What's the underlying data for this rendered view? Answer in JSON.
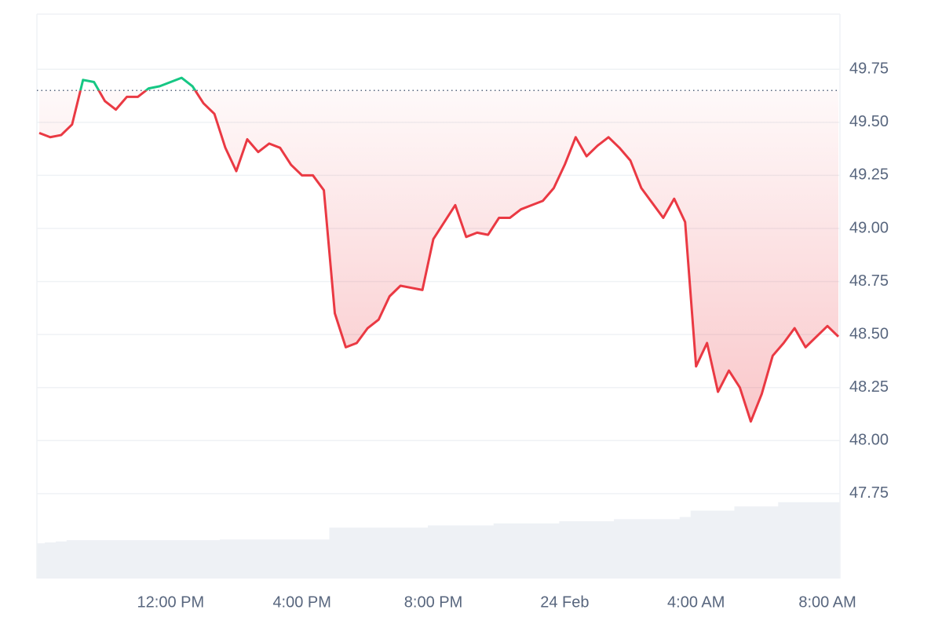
{
  "chart_data": {
    "type": "line",
    "categories": [
      null,
      null,
      null,
      null,
      null,
      null,
      null,
      null,
      null,
      null,
      null,
      null,
      "12:00 PM",
      null,
      null,
      null,
      null,
      null,
      null,
      null,
      null,
      null,
      null,
      null,
      "4:00 PM",
      null,
      null,
      null,
      null,
      null,
      null,
      null,
      null,
      null,
      null,
      null,
      "8:00 PM",
      null,
      null,
      null,
      null,
      null,
      null,
      null,
      null,
      null,
      null,
      null,
      "24 Feb",
      null,
      null,
      null,
      null,
      null,
      null,
      null,
      null,
      null,
      null,
      null,
      "4:00 AM",
      null,
      null,
      null,
      null,
      null,
      null,
      null,
      null,
      null,
      null,
      null,
      "8:00 AM",
      null
    ],
    "series": [
      {
        "values": [
          49.45,
          49.43,
          49.44,
          49.49,
          49.7,
          49.69,
          49.6,
          49.56,
          49.62,
          49.62,
          49.66,
          49.67,
          49.69,
          49.71,
          49.67,
          49.59,
          49.54,
          49.38,
          49.27,
          49.42,
          49.36,
          49.4,
          49.38,
          49.3,
          49.25,
          49.25,
          49.18,
          48.6,
          48.44,
          48.46,
          48.53,
          48.57,
          48.68,
          48.73,
          48.72,
          48.71,
          48.95,
          49.03,
          49.11,
          48.96,
          48.98,
          48.97,
          49.05,
          49.05,
          49.09,
          49.11,
          49.13,
          49.19,
          49.3,
          49.43,
          49.34,
          49.39,
          49.43,
          49.38,
          49.32,
          49.19,
          49.12,
          49.05,
          49.14,
          49.03,
          48.35,
          48.46,
          48.23,
          48.33,
          48.25,
          48.09,
          48.22,
          48.4,
          48.46,
          48.53,
          48.44,
          48.49,
          48.54,
          48.49
        ],
        "color": "#ea3943",
        "color_above": "#16c784"
      },
      {
        "type": "area",
        "color": "#eef1f5",
        "values": [
          47.516,
          47.52,
          47.525,
          47.531,
          47.531,
          47.531,
          47.531,
          47.531,
          47.531,
          47.531,
          47.531,
          47.531,
          47.531,
          47.531,
          47.531,
          47.531,
          47.531,
          47.534,
          47.534,
          47.534,
          47.534,
          47.534,
          47.534,
          47.534,
          47.534,
          47.534,
          47.534,
          47.59,
          47.59,
          47.59,
          47.59,
          47.59,
          47.59,
          47.59,
          47.59,
          47.59,
          47.6,
          47.6,
          47.6,
          47.6,
          47.6,
          47.6,
          47.61,
          47.61,
          47.61,
          47.61,
          47.61,
          47.61,
          47.62,
          47.62,
          47.62,
          47.62,
          47.62,
          47.63,
          47.63,
          47.63,
          47.63,
          47.63,
          47.63,
          47.64,
          47.67,
          47.67,
          47.67,
          47.67,
          47.69,
          47.69,
          47.69,
          47.69,
          47.71,
          47.71,
          47.71,
          47.71,
          47.71,
          47.71
        ]
      }
    ],
    "reference": 49.65,
    "ylim": [
      47.35,
      50.01
    ],
    "yticks": [
      {
        "value": 47.75,
        "label": "47.75"
      },
      {
        "value": 48,
        "label": "48.00"
      },
      48.25,
      {
        "value": 48.5,
        "label": "48.50"
      },
      48.75,
      {
        "value": 49,
        "label": "49.00"
      },
      49.25,
      {
        "value": 49.5,
        "label": "49.50"
      },
      49.75
    ],
    "grid": true
  }
}
